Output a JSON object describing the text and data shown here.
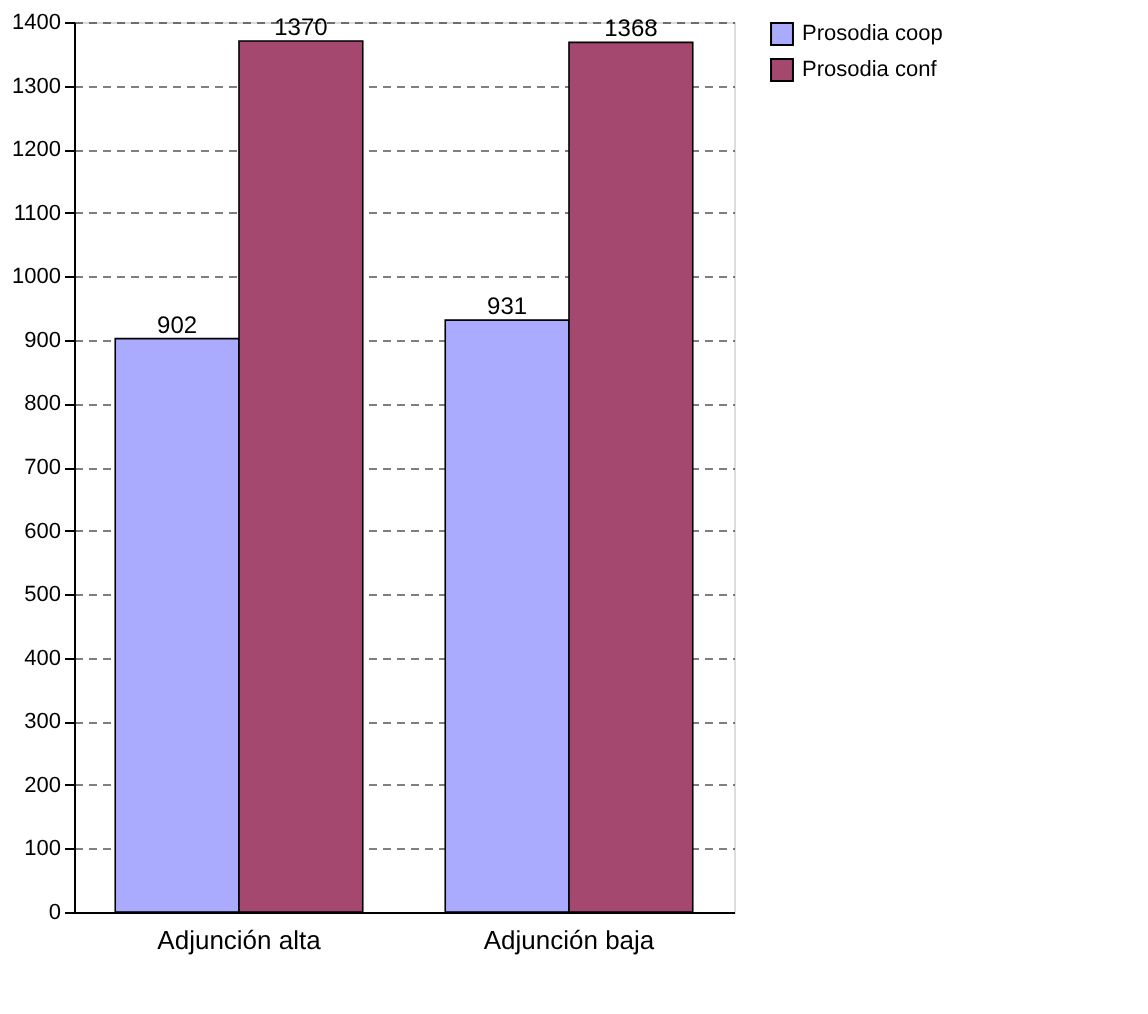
{
  "chart_data": {
    "type": "bar",
    "categories": [
      "Adjunción alta",
      "Adjunción baja"
    ],
    "series": [
      {
        "name": "Prosodia coop",
        "color": "#aaaaff",
        "values": [
          902,
          931
        ]
      },
      {
        "name": "Prosodia conf",
        "color": "#a5486f",
        "values": [
          1370,
          1368
        ]
      }
    ],
    "ylim": [
      0,
      1400
    ],
    "yticks": [
      0,
      100,
      200,
      300,
      400,
      500,
      600,
      700,
      800,
      900,
      1000,
      1100,
      1200,
      1300,
      1400
    ],
    "grid": "y",
    "legend": "right",
    "data_labels": true
  }
}
